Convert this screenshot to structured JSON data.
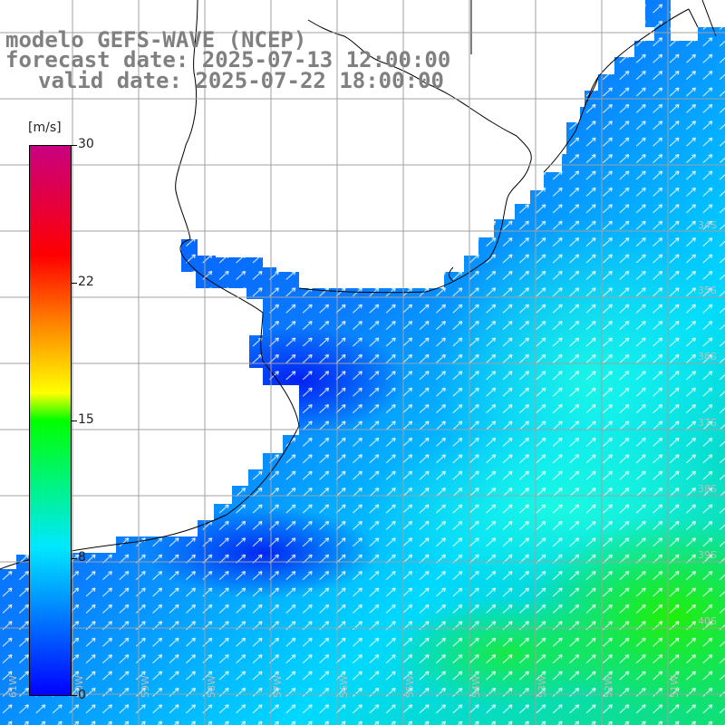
{
  "title": {
    "line1": "modelo GEFS-WAVE (NCEP)",
    "line2": "forecast date: 2025-07-13 12:00:00",
    "line3": "valid date: 2025-07-22 18:00:00"
  },
  "colorbar": {
    "unit": "[m/s]",
    "ticks": [
      "30",
      "22",
      "15",
      "8",
      "0"
    ],
    "tick_values": [
      30,
      22,
      15,
      8,
      0
    ],
    "colors": [
      "#0000ff",
      "#00e8ff",
      "#00ff00",
      "#ffff00",
      "#ff8000",
      "#ff0000",
      "#c80080"
    ]
  },
  "map": {
    "lat_labels": [
      "34S",
      "35S",
      "36S",
      "37S",
      "38S",
      "39S",
      "40S"
    ],
    "lon_labels": [
      "61W",
      "60W",
      "59W",
      "58W",
      "57W",
      "56W",
      "55W",
      "54W",
      "53W",
      "52W",
      "51W"
    ],
    "land_color": "#ffffff",
    "grid_color": "#a0a0a0"
  }
}
